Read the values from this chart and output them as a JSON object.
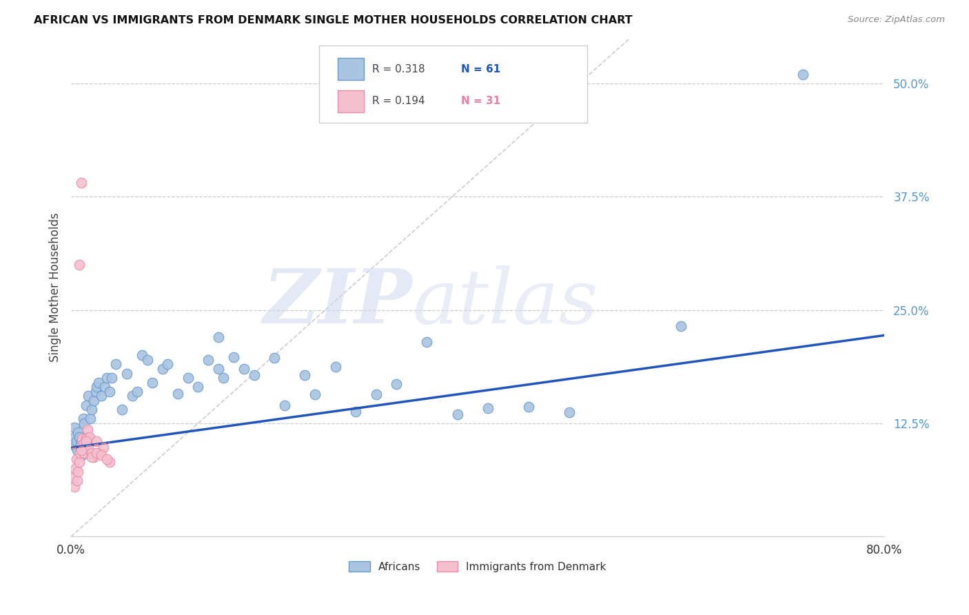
{
  "title": "AFRICAN VS IMMIGRANTS FROM DENMARK SINGLE MOTHER HOUSEHOLDS CORRELATION CHART",
  "source": "Source: ZipAtlas.com",
  "ylabel": "Single Mother Households",
  "xlim": [
    0.0,
    0.8
  ],
  "ylim": [
    0.0,
    0.55
  ],
  "yticks": [
    0.0,
    0.125,
    0.25,
    0.375,
    0.5
  ],
  "ytick_labels": [
    "",
    "12.5%",
    "25.0%",
    "37.5%",
    "50.0%"
  ],
  "xticks": [
    0.0,
    0.2,
    0.4,
    0.6,
    0.8
  ],
  "xtick_labels": [
    "0.0%",
    "",
    "",
    "",
    "80.0%"
  ],
  "background_color": "#ffffff",
  "grid_color": "#cccccc",
  "african_color": "#aac4e2",
  "african_edge_color": "#6699cc",
  "denmark_color": "#f5c0ce",
  "denmark_edge_color": "#e88aaa",
  "trend_african_color": "#2255bb",
  "trend_denmark_color": "#dd8899",
  "diagonal_color": "#cccccc",
  "R_african": 0.318,
  "N_african": 61,
  "R_denmark": 0.194,
  "N_denmark": 31,
  "trend_african_intercept": 0.098,
  "trend_african_slope": 0.155,
  "trend_denmark_intercept": 0.097,
  "trend_denmark_slope": 0.18,
  "africans_x": [
    0.003,
    0.003,
    0.004,
    0.005,
    0.006,
    0.007,
    0.008,
    0.009,
    0.01,
    0.011,
    0.012,
    0.013,
    0.015,
    0.016,
    0.017,
    0.019,
    0.02,
    0.022,
    0.024,
    0.025,
    0.027,
    0.03,
    0.033,
    0.035,
    0.038,
    0.04,
    0.044,
    0.05,
    0.055,
    0.06,
    0.065,
    0.07,
    0.075,
    0.08,
    0.09,
    0.095,
    0.105,
    0.115,
    0.125,
    0.135,
    0.145,
    0.15,
    0.16,
    0.17,
    0.18,
    0.2,
    0.21,
    0.23,
    0.24,
    0.26,
    0.28,
    0.3,
    0.32,
    0.35,
    0.38,
    0.41,
    0.45,
    0.49,
    0.145,
    0.6,
    0.72
  ],
  "africans_y": [
    0.12,
    0.11,
    0.1,
    0.105,
    0.095,
    0.115,
    0.11,
    0.1,
    0.105,
    0.09,
    0.13,
    0.125,
    0.145,
    0.11,
    0.155,
    0.13,
    0.14,
    0.15,
    0.16,
    0.165,
    0.17,
    0.155,
    0.165,
    0.175,
    0.16,
    0.175,
    0.19,
    0.14,
    0.18,
    0.155,
    0.16,
    0.2,
    0.195,
    0.17,
    0.185,
    0.19,
    0.158,
    0.175,
    0.165,
    0.195,
    0.185,
    0.175,
    0.198,
    0.185,
    0.178,
    0.197,
    0.145,
    0.178,
    0.157,
    0.187,
    0.138,
    0.157,
    0.168,
    0.215,
    0.135,
    0.142,
    0.143,
    0.137,
    0.22,
    0.232,
    0.51
  ],
  "denmark_x": [
    0.002,
    0.003,
    0.004,
    0.005,
    0.006,
    0.007,
    0.008,
    0.009,
    0.01,
    0.011,
    0.012,
    0.013,
    0.014,
    0.015,
    0.016,
    0.017,
    0.018,
    0.02,
    0.022,
    0.025,
    0.028,
    0.032,
    0.038,
    0.01,
    0.015,
    0.02,
    0.025,
    0.03,
    0.035,
    0.008,
    0.01
  ],
  "denmark_y": [
    0.065,
    0.055,
    0.075,
    0.085,
    0.062,
    0.072,
    0.082,
    0.092,
    0.1,
    0.108,
    0.102,
    0.092,
    0.1,
    0.108,
    0.118,
    0.1,
    0.11,
    0.092,
    0.088,
    0.105,
    0.092,
    0.098,
    0.082,
    0.095,
    0.105,
    0.088,
    0.092,
    0.09,
    0.085,
    0.3,
    0.39
  ]
}
